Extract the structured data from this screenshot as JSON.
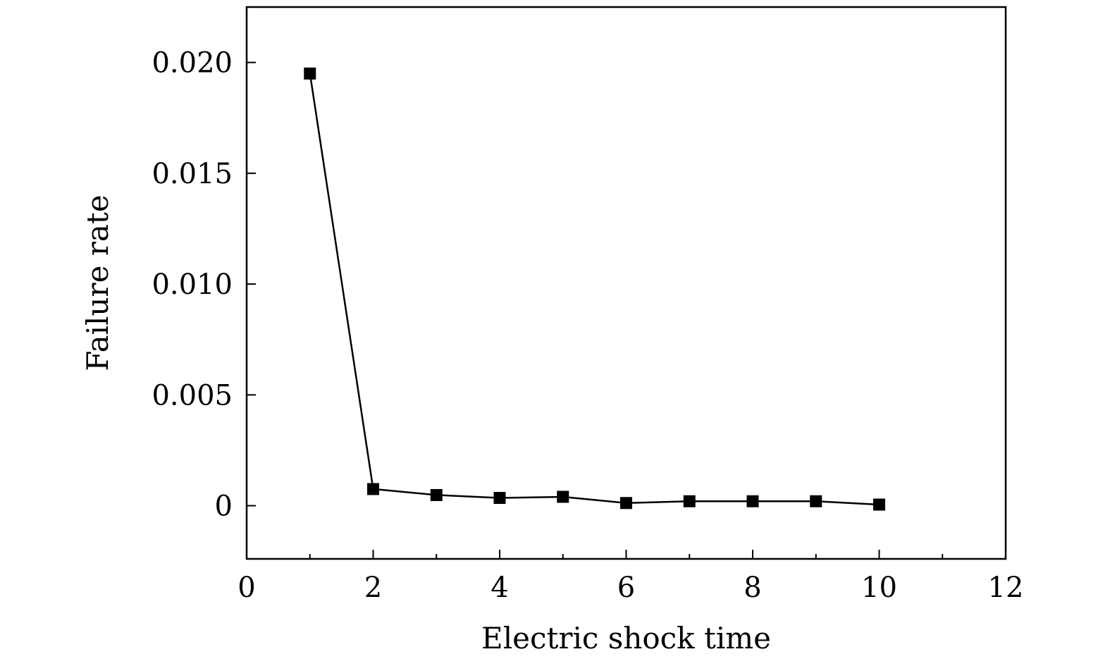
{
  "chart_data": {
    "type": "line",
    "title": "",
    "xlabel": "Electric shock time",
    "ylabel": "Failure rate",
    "xlim": [
      0,
      12
    ],
    "ylim": [
      -0.0024,
      0.0225
    ],
    "x_ticks": [
      0,
      2,
      4,
      6,
      8,
      10,
      12
    ],
    "x_tick_labels": [
      "0",
      "2",
      "4",
      "6",
      "8",
      "10",
      "12"
    ],
    "x_minor_ticks": [
      1,
      3,
      5,
      7,
      9,
      11
    ],
    "y_ticks": [
      0,
      0.005,
      0.01,
      0.015,
      0.02
    ],
    "y_tick_labels": [
      "0",
      "0.005",
      "0.010",
      "0.015",
      "0.020"
    ],
    "grid": false,
    "legend": "none",
    "series": [
      {
        "marker": "filled-square",
        "color": "#000000",
        "x": [
          1,
          2,
          3,
          4,
          5,
          6,
          7,
          8,
          9,
          10
        ],
        "y": [
          0.0195,
          0.00075,
          0.00048,
          0.00035,
          0.0004,
          0.00012,
          0.0002,
          0.0002,
          0.0002,
          5e-05
        ]
      }
    ]
  }
}
